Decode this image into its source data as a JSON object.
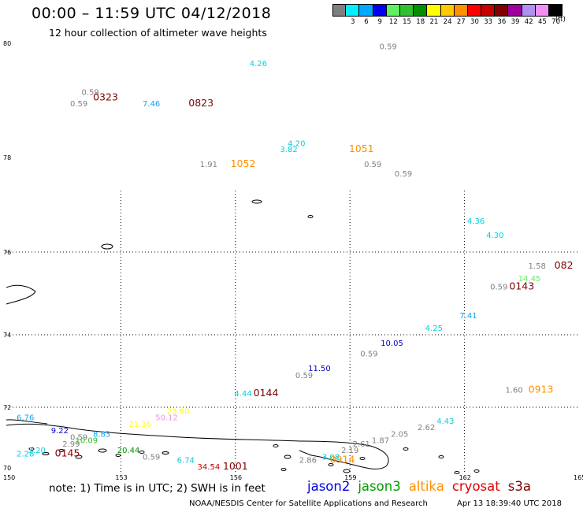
{
  "header": {
    "title": "00:00 – 11:59 UTC 04/12/2018",
    "subtitle": "12 hour collection of altimeter wave heights"
  },
  "legend": {
    "colors": [
      "#7f7f7f",
      "#00f0ff",
      "#00a8ff",
      "#0000f0",
      "#60f060",
      "#30c030",
      "#009000",
      "#ffff00",
      "#ffc800",
      "#ff9000",
      "#ff0000",
      "#c80000",
      "#800000",
      "#a000a0",
      "#b090f0",
      "#f090f0",
      "#000000"
    ],
    "labels": [
      "3",
      "6",
      "9",
      "12",
      "15",
      "18",
      "21",
      "24",
      "27",
      "30",
      "33",
      "36",
      "39",
      "42",
      "45",
      "70"
    ],
    "unit": "(ft)"
  },
  "map": {
    "lon_ticks": [
      "150",
      "153",
      "156",
      "159",
      "162",
      "165"
    ],
    "lat_ticks": [
      "80",
      "78",
      "76",
      "74",
      "72",
      "70"
    ],
    "wave_labels": [
      {
        "text": "0.59",
        "color": "#808080",
        "lon": 160.0,
        "lat": 79.9
      },
      {
        "text": "4.26",
        "color": "#00d0e0",
        "lon": 156.6,
        "lat": 79.6
      },
      {
        "text": "0.59",
        "color": "#808080",
        "lon": 152.2,
        "lat": 79.1
      },
      {
        "text": "0.59",
        "color": "#808080",
        "lon": 151.9,
        "lat": 78.9
      },
      {
        "text": "0323",
        "color": "#800000",
        "lon": 152.6,
        "lat": 79.0
      },
      {
        "text": "7.46",
        "color": "#00a8ff",
        "lon": 153.8,
        "lat": 78.9
      },
      {
        "text": "0823",
        "color": "#800000",
        "lon": 155.1,
        "lat": 78.9
      },
      {
        "text": "4.20",
        "color": "#00d0e0",
        "lon": 157.6,
        "lat": 78.2
      },
      {
        "text": "3.82",
        "color": "#00d0e0",
        "lon": 157.4,
        "lat": 78.1
      },
      {
        "text": "1051",
        "color": "#ff9000",
        "lon": 159.3,
        "lat": 78.1
      },
      {
        "text": "0.59",
        "color": "#808080",
        "lon": 159.6,
        "lat": 77.8
      },
      {
        "text": "0.59",
        "color": "#808080",
        "lon": 160.4,
        "lat": 77.6
      },
      {
        "text": "1.91",
        "color": "#808080",
        "lon": 155.3,
        "lat": 77.8
      },
      {
        "text": "1052",
        "color": "#ff9000",
        "lon": 156.2,
        "lat": 77.8
      },
      {
        "text": "4.36",
        "color": "#00d0e0",
        "lon": 162.3,
        "lat": 76.6
      },
      {
        "text": "4.30",
        "color": "#00d0e0",
        "lon": 162.8,
        "lat": 76.3
      },
      {
        "text": "1.58",
        "color": "#808080",
        "lon": 163.9,
        "lat": 75.6
      },
      {
        "text": "082",
        "color": "#800000",
        "lon": 164.6,
        "lat": 75.6
      },
      {
        "text": "14.45",
        "color": "#60f060",
        "lon": 163.7,
        "lat": 75.3
      },
      {
        "text": "0.59",
        "color": "#808080",
        "lon": 162.9,
        "lat": 75.1
      },
      {
        "text": "0143",
        "color": "#800000",
        "lon": 163.5,
        "lat": 75.1
      },
      {
        "text": "7.41",
        "color": "#00a8ff",
        "lon": 162.1,
        "lat": 74.4
      },
      {
        "text": "4.25",
        "color": "#00d0e0",
        "lon": 161.2,
        "lat": 74.1
      },
      {
        "text": "10.05",
        "color": "#0000c0",
        "lon": 160.1,
        "lat": 73.7
      },
      {
        "text": "0.59",
        "color": "#808080",
        "lon": 159.5,
        "lat": 73.4
      },
      {
        "text": "11.50",
        "color": "#0000c0",
        "lon": 158.2,
        "lat": 73.0
      },
      {
        "text": "0.59",
        "color": "#808080",
        "lon": 157.8,
        "lat": 72.8
      },
      {
        "text": "1.60",
        "color": "#808080",
        "lon": 163.3,
        "lat": 72.4
      },
      {
        "text": "0913",
        "color": "#ff9000",
        "lon": 164.0,
        "lat": 72.4
      },
      {
        "text": "4.44",
        "color": "#00d0e0",
        "lon": 156.2,
        "lat": 72.3
      },
      {
        "text": "0144",
        "color": "#800000",
        "lon": 156.8,
        "lat": 72.3
      },
      {
        "text": "6.76",
        "color": "#00a8ff",
        "lon": 150.5,
        "lat": 71.6
      },
      {
        "text": "23.60",
        "color": "#ffff00",
        "lon": 154.5,
        "lat": 71.8
      },
      {
        "text": "50.12",
        "color": "#f090f0",
        "lon": 154.2,
        "lat": 71.6
      },
      {
        "text": "21.36",
        "color": "#ffff00",
        "lon": 153.5,
        "lat": 71.4
      },
      {
        "text": "4.43",
        "color": "#00d0e0",
        "lon": 161.5,
        "lat": 71.5
      },
      {
        "text": "2.62",
        "color": "#808080",
        "lon": 161.0,
        "lat": 71.3
      },
      {
        "text": "9.22",
        "color": "#0000c0",
        "lon": 151.4,
        "lat": 71.2
      },
      {
        "text": "0.59",
        "color": "#808080",
        "lon": 151.9,
        "lat": 71.0
      },
      {
        "text": "8.83",
        "color": "#00a8ff",
        "lon": 152.5,
        "lat": 71.1
      },
      {
        "text": "2.05",
        "color": "#808080",
        "lon": 160.3,
        "lat": 71.1
      },
      {
        "text": "10.09",
        "color": "#30c030",
        "lon": 152.1,
        "lat": 70.9
      },
      {
        "text": "1.87",
        "color": "#808080",
        "lon": 159.8,
        "lat": 70.9
      },
      {
        "text": "2.99",
        "color": "#808080",
        "lon": 151.7,
        "lat": 70.8
      },
      {
        "text": "2.61",
        "color": "#808080",
        "lon": 159.3,
        "lat": 70.8
      },
      {
        "text": "3.20",
        "color": "#00d0e0",
        "lon": 150.8,
        "lat": 70.6
      },
      {
        "text": "2.28",
        "color": "#00d0e0",
        "lon": 150.5,
        "lat": 70.5
      },
      {
        "text": "0145",
        "color": "#800000",
        "lon": 151.6,
        "lat": 70.5
      },
      {
        "text": "20.44",
        "color": "#009000",
        "lon": 153.2,
        "lat": 70.6
      },
      {
        "text": "2.19",
        "color": "#808080",
        "lon": 159.0,
        "lat": 70.6
      },
      {
        "text": "0.59",
        "color": "#808080",
        "lon": 153.8,
        "lat": 70.4
      },
      {
        "text": "3.08",
        "color": "#00d0e0",
        "lon": 158.5,
        "lat": 70.4
      },
      {
        "text": "6.74",
        "color": "#00d0e0",
        "lon": 154.7,
        "lat": 70.3
      },
      {
        "text": "2.86",
        "color": "#808080",
        "lon": 157.9,
        "lat": 70.3
      },
      {
        "text": "0914",
        "color": "#ff9000",
        "lon": 158.8,
        "lat": 70.3
      },
      {
        "text": "34.54",
        "color": "#c80000",
        "lon": 155.3,
        "lat": 70.1
      },
      {
        "text": "1001",
        "color": "#800000",
        "lon": 156.0,
        "lat": 70.1
      }
    ]
  },
  "note": "note:  1) Time is in UTC;  2) SWH is in feet",
  "satellites": [
    {
      "name": "jason2",
      "color": "#0000e0"
    },
    {
      "name": "jason3",
      "color": "#00a000"
    },
    {
      "name": "altika",
      "color": "#ff9000"
    },
    {
      "name": "cryosat",
      "color": "#e00000"
    },
    {
      "name": "s3a",
      "color": "#800000"
    }
  ],
  "footer": {
    "credit": "NOAA/NESDIS Center for Satellite Applications and Research",
    "timestamp": "Apr 13 18:39:40 UTC 2018"
  }
}
